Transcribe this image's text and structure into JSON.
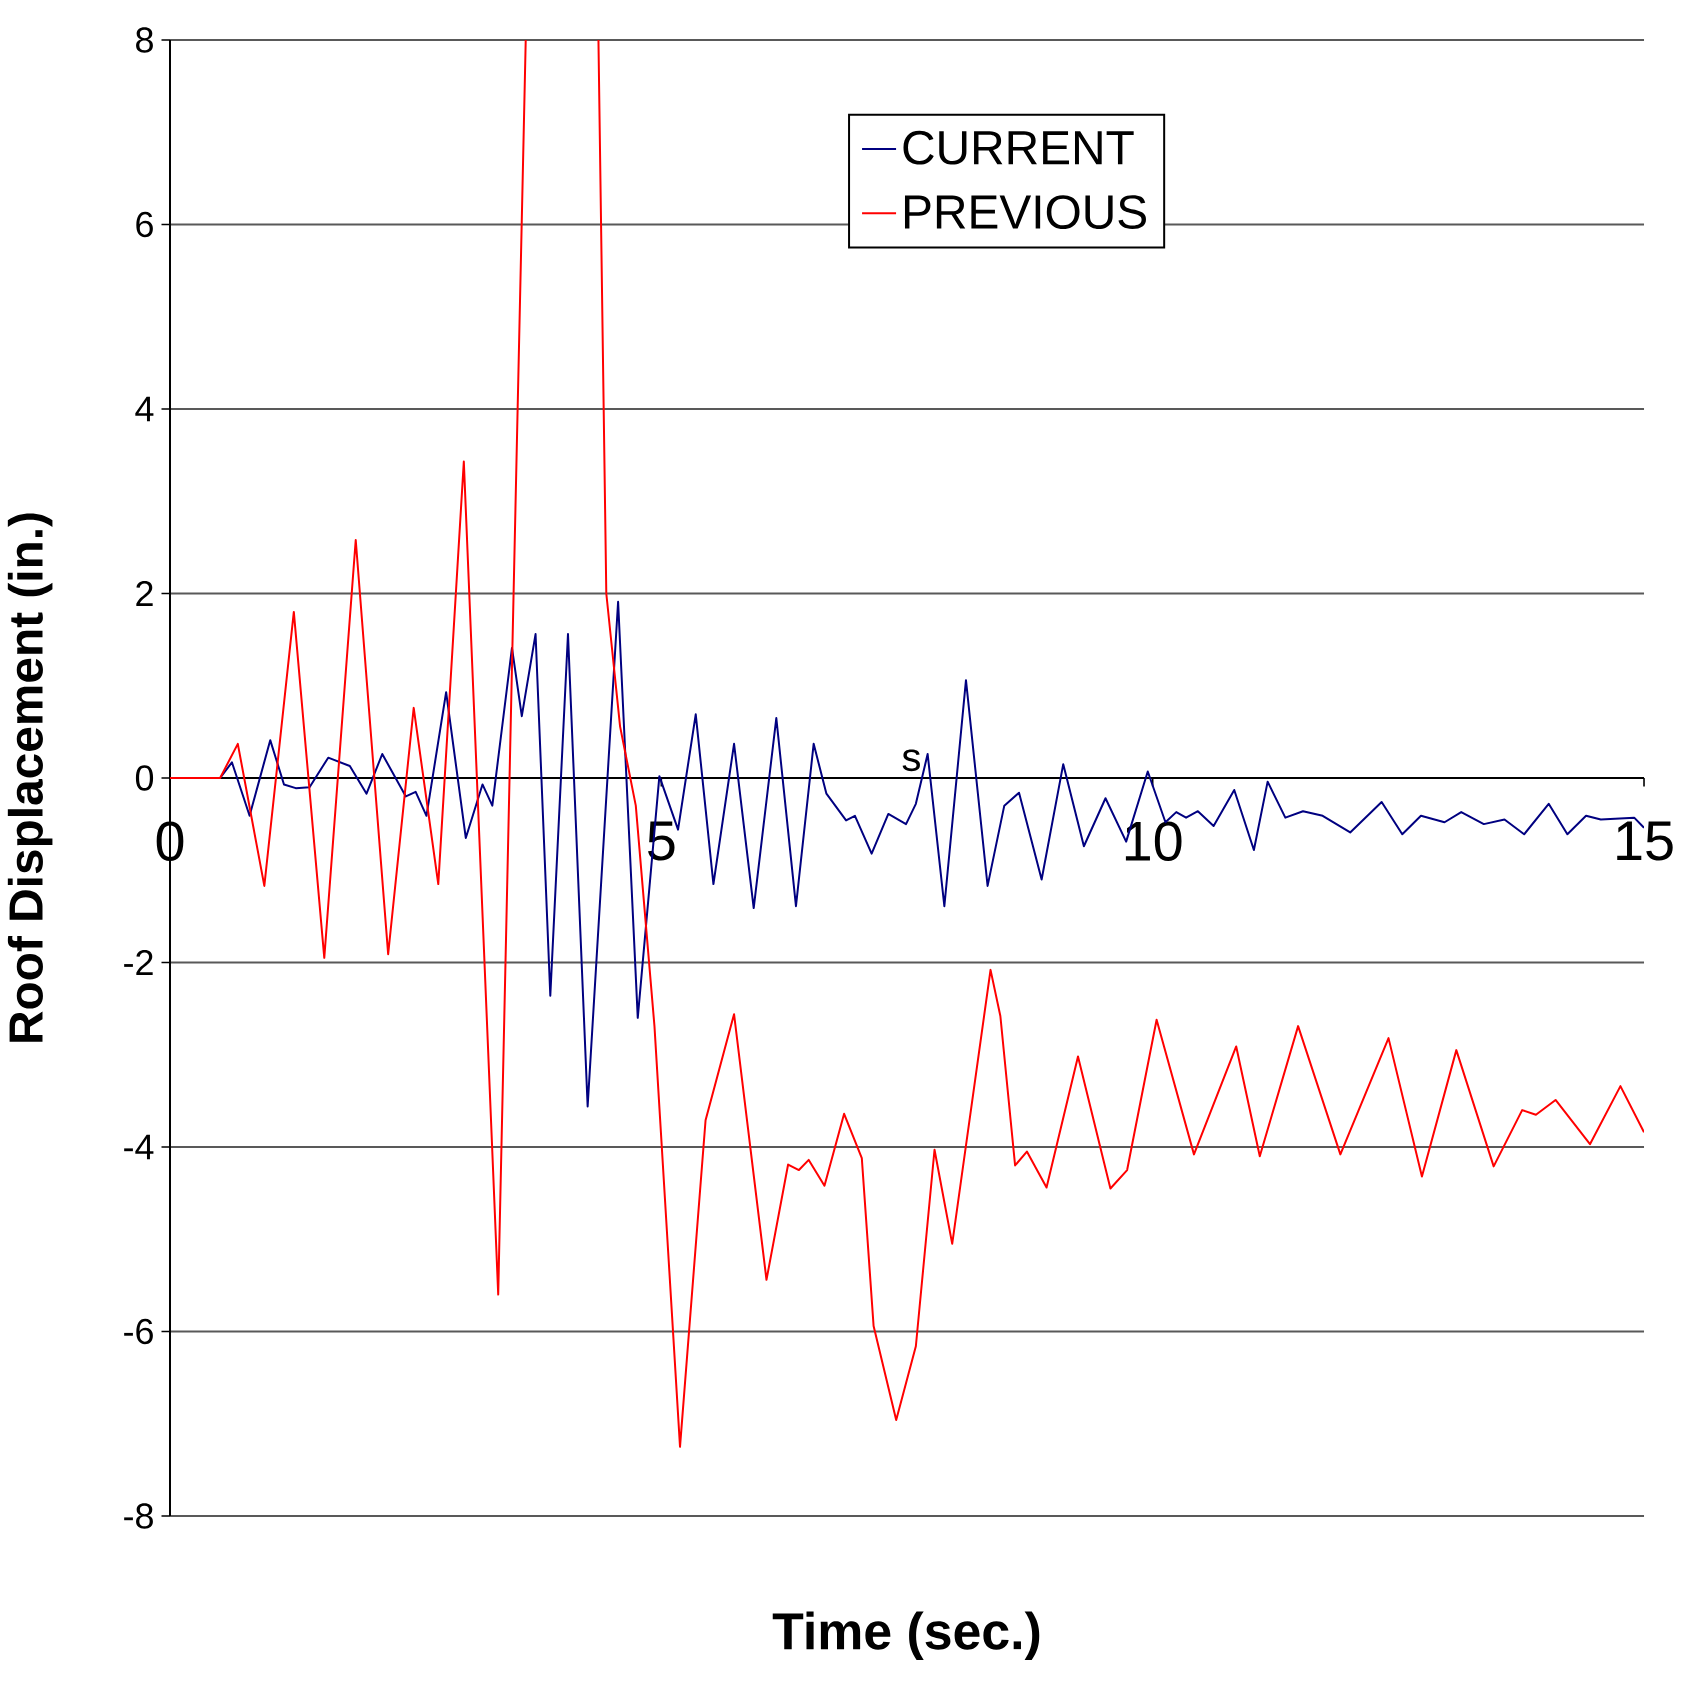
{
  "chart_data": {
    "type": "line",
    "xlabel": "Time (sec.)",
    "ylabel": "Roof Displacement (in.)",
    "xlim": [
      0,
      15
    ],
    "xticks": [
      0,
      5,
      10,
      15
    ],
    "ylim": [
      -8,
      8
    ],
    "yticks": [
      -8,
      -6,
      -4,
      -2,
      0,
      2,
      4,
      6,
      8
    ],
    "grid": "y",
    "legend": "top right",
    "marker": "none",
    "line_style": "solid",
    "annotations": [
      "s"
    ],
    "series": [
      {
        "name": "CURRENT",
        "color": "#000080",
        "x": [
          0,
          0.51,
          0.63,
          0.81,
          1.02,
          1.16,
          1.28,
          1.42,
          1.61,
          1.83,
          2.0,
          2.16,
          2.4,
          2.5,
          2.61,
          2.81,
          3.01,
          3.18,
          3.28,
          3.48,
          3.58,
          3.72,
          3.87,
          4.05,
          4.25,
          4.56,
          4.76,
          4.98,
          5.17,
          5.35,
          5.53,
          5.74,
          5.94,
          6.17,
          6.37,
          6.55,
          6.68,
          6.88,
          6.97,
          7.14,
          7.31,
          7.49,
          7.59,
          7.71,
          7.88,
          8.1,
          8.32,
          8.49,
          8.64,
          8.87,
          9.09,
          9.3,
          9.52,
          9.73,
          9.95,
          10.13,
          10.24,
          10.34,
          10.46,
          10.62,
          10.83,
          11.03,
          11.17,
          11.35,
          11.53,
          11.73,
          12.01,
          12.33,
          12.54,
          12.73,
          12.97,
          13.14,
          13.37,
          13.58,
          13.78,
          14.03,
          14.22,
          14.41,
          14.56,
          14.9,
          15.0
        ],
        "values": [
          0,
          0,
          0.17,
          -0.41,
          0.41,
          -0.07,
          -0.11,
          -0.1,
          0.22,
          0.13,
          -0.17,
          0.26,
          -0.2,
          -0.15,
          -0.41,
          0.93,
          -0.65,
          -0.07,
          -0.3,
          1.41,
          0.67,
          1.56,
          -2.36,
          1.56,
          -3.56,
          1.91,
          -2.6,
          0.02,
          -0.56,
          0.69,
          -1.15,
          0.37,
          -1.41,
          0.65,
          -1.39,
          0.37,
          -0.17,
          -0.46,
          -0.41,
          -0.82,
          -0.39,
          -0.5,
          -0.28,
          0.26,
          -1.39,
          1.06,
          -1.17,
          -0.3,
          -0.16,
          -1.1,
          0.15,
          -0.74,
          -0.22,
          -0.69,
          0.07,
          -0.48,
          -0.37,
          -0.43,
          -0.36,
          -0.52,
          -0.13,
          -0.78,
          -0.04,
          -0.43,
          -0.36,
          -0.41,
          -0.59,
          -0.26,
          -0.61,
          -0.41,
          -0.48,
          -0.37,
          -0.5,
          -0.45,
          -0.61,
          -0.28,
          -0.61,
          -0.41,
          -0.45,
          -0.43,
          -0.54
        ]
      },
      {
        "name": "PREVIOUS",
        "color": "#ff0000",
        "x": [
          0,
          0.51,
          0.69,
          0.96,
          1.26,
          1.57,
          1.89,
          2.22,
          2.48,
          2.73,
          2.99,
          3.34,
          3.62,
          4.0,
          4.36,
          4.44,
          4.58,
          4.74,
          4.93,
          5.19,
          5.45,
          5.74,
          6.07,
          6.29,
          6.4,
          6.5,
          6.66,
          6.86,
          7.04,
          7.16,
          7.39,
          7.59,
          7.78,
          7.96,
          8.35,
          8.45,
          8.6,
          8.72,
          8.92,
          9.24,
          9.57,
          9.74,
          10.04,
          10.42,
          10.85,
          11.09,
          11.48,
          11.91,
          12.4,
          12.74,
          13.09,
          13.47,
          13.76,
          13.9,
          14.1,
          14.45,
          14.76,
          15.0
        ],
        "values": [
          0,
          0,
          0.37,
          -1.17,
          1.8,
          -1.95,
          2.58,
          -1.91,
          0.76,
          -1.15,
          3.43,
          -5.6,
          8,
          null,
          8,
          2.0,
          0.56,
          -0.3,
          -2.69,
          -7.25,
          -3.71,
          -2.56,
          -5.44,
          -4.19,
          -4.25,
          -4.14,
          -4.42,
          -3.64,
          -4.12,
          -5.94,
          -6.96,
          -6.16,
          -4.03,
          -5.05,
          -2.08,
          -2.58,
          -4.2,
          -4.05,
          -4.44,
          -3.02,
          -4.45,
          -4.25,
          -2.62,
          -4.08,
          -2.91,
          -4.1,
          -2.69,
          -4.08,
          -2.82,
          -4.32,
          -2.95,
          -4.21,
          -3.6,
          -3.65,
          -3.49,
          -3.97,
          -3.34,
          -3.84
        ]
      }
    ]
  }
}
